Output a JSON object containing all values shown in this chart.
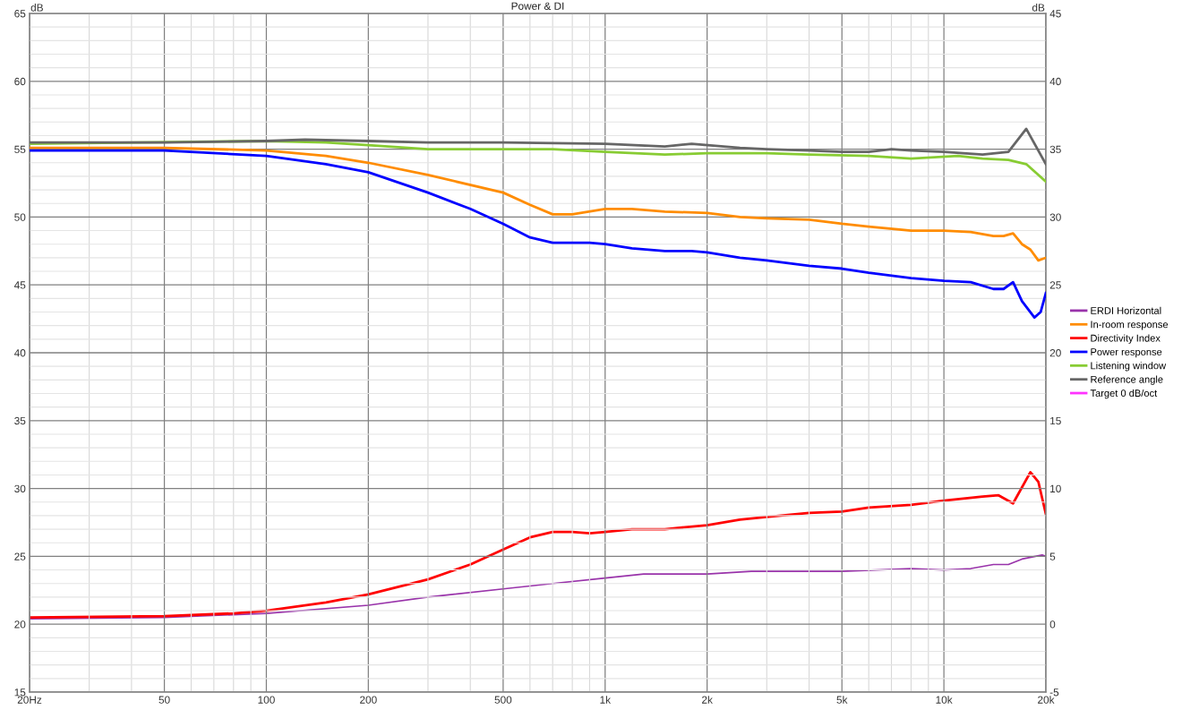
{
  "chart_data": {
    "type": "line",
    "title": "Power & DI",
    "ylabel": "dB",
    "y2label": "dB",
    "xlim": [
      20,
      20000
    ],
    "xticks": [
      {
        "value": 20,
        "label": "20Hz"
      },
      50,
      100,
      200,
      500,
      {
        "value": 1000,
        "label": "1k"
      },
      {
        "value": 2000,
        "label": "2k"
      },
      {
        "value": 5000,
        "label": "5k"
      },
      {
        "value": 10000,
        "label": "10k"
      },
      {
        "value": 20000,
        "label": "20k"
      }
    ],
    "ylim": [
      15,
      65
    ],
    "yticks": [
      15,
      20,
      25,
      30,
      35,
      40,
      45,
      50,
      55,
      60,
      65
    ],
    "y2lim": [
      -5,
      45
    ],
    "y2ticks": [
      -5,
      0,
      5,
      10,
      15,
      20,
      25,
      30,
      35,
      40,
      45
    ],
    "log": "x",
    "grid": true,
    "legend": "right",
    "marker": "none",
    "line_style": "solid",
    "series": [
      {
        "name": "ERDI Horizontal",
        "color": "#9933aa",
        "axis": "y2",
        "x": [
          20,
          50,
          100,
          200,
          300,
          500,
          700,
          1000,
          1300,
          2000,
          2700,
          5000,
          8000,
          10000,
          12000,
          14000,
          15500,
          17000,
          19500,
          20000
        ],
        "values": [
          0.4,
          0.5,
          0.8,
          1.4,
          2.0,
          2.6,
          3.0,
          3.4,
          3.7,
          3.7,
          3.9,
          3.9,
          4.1,
          4.0,
          4.1,
          4.4,
          4.4,
          4.8,
          5.1,
          5.0
        ]
      },
      {
        "name": "In-room response",
        "color": "#ff8c00",
        "x": [
          20,
          50,
          100,
          150,
          200,
          300,
          500,
          600,
          700,
          800,
          1000,
          1200,
          1500,
          2000,
          2500,
          3000,
          4000,
          5000,
          6000,
          8000,
          10000,
          12000,
          14000,
          15000,
          16000,
          17000,
          18000,
          19000,
          20000
        ],
        "values": [
          55.1,
          55.1,
          54.9,
          54.5,
          54.0,
          53.1,
          51.8,
          50.9,
          50.2,
          50.2,
          50.6,
          50.6,
          50.4,
          50.3,
          50.0,
          49.9,
          49.8,
          49.5,
          49.3,
          49.0,
          49.0,
          48.9,
          48.6,
          48.6,
          48.8,
          48.0,
          47.6,
          46.8,
          47.0
        ]
      },
      {
        "name": "Directivity Index",
        "color": "#ff0000",
        "axis": "y2",
        "x": [
          20,
          50,
          80,
          100,
          150,
          200,
          300,
          400,
          500,
          600,
          700,
          800,
          900,
          1000,
          1200,
          1500,
          2000,
          2500,
          3000,
          4000,
          5000,
          6000,
          8000,
          10000,
          13000,
          14500,
          16000,
          18000,
          19000,
          20000
        ],
        "values": [
          0.5,
          0.6,
          0.8,
          1.0,
          1.6,
          2.2,
          3.3,
          4.4,
          5.5,
          6.4,
          6.8,
          6.8,
          6.7,
          6.8,
          7.0,
          7.0,
          7.3,
          7.7,
          7.9,
          8.2,
          8.3,
          8.6,
          8.8,
          9.1,
          9.4,
          9.5,
          8.9,
          11.2,
          10.5,
          8.1
        ]
      },
      {
        "name": "Power response",
        "color": "#0000ff",
        "x": [
          20,
          50,
          100,
          150,
          200,
          300,
          400,
          500,
          600,
          700,
          800,
          900,
          1000,
          1200,
          1500,
          1800,
          2000,
          2500,
          3000,
          4000,
          5000,
          6000,
          8000,
          10000,
          12000,
          14000,
          15000,
          16000,
          17000,
          18500,
          19300,
          20000
        ],
        "values": [
          54.9,
          54.9,
          54.5,
          53.9,
          53.3,
          51.8,
          50.6,
          49.5,
          48.5,
          48.1,
          48.1,
          48.1,
          48.0,
          47.7,
          47.5,
          47.5,
          47.4,
          47.0,
          46.8,
          46.4,
          46.2,
          45.9,
          45.5,
          45.3,
          45.2,
          44.7,
          44.7,
          45.2,
          43.8,
          42.6,
          43.0,
          44.4
        ]
      },
      {
        "name": "Listening window",
        "color": "#88cc33",
        "x": [
          20,
          100,
          150,
          200,
          300,
          700,
          1000,
          1500,
          2000,
          3000,
          4000,
          6000,
          8000,
          11000,
          13000,
          15500,
          17500,
          20000
        ],
        "values": [
          55.4,
          55.6,
          55.5,
          55.3,
          55.0,
          55.0,
          54.8,
          54.6,
          54.7,
          54.7,
          54.6,
          54.5,
          54.3,
          54.5,
          54.3,
          54.2,
          53.9,
          52.6
        ]
      },
      {
        "name": "Reference angle",
        "color": "#666666",
        "x": [
          20,
          50,
          100,
          130,
          200,
          300,
          500,
          1000,
          1500,
          1800,
          2500,
          3000,
          4000,
          5000,
          6000,
          7000,
          8000,
          10000,
          13000,
          15500,
          17500,
          20000
        ],
        "values": [
          55.5,
          55.5,
          55.6,
          55.7,
          55.6,
          55.5,
          55.5,
          55.4,
          55.2,
          55.4,
          55.1,
          55.0,
          54.9,
          54.8,
          54.8,
          55.0,
          54.9,
          54.8,
          54.6,
          54.8,
          56.5,
          53.9
        ]
      },
      {
        "name": "Target 0 dB/oct",
        "color": "#ff33ff"
      }
    ]
  }
}
